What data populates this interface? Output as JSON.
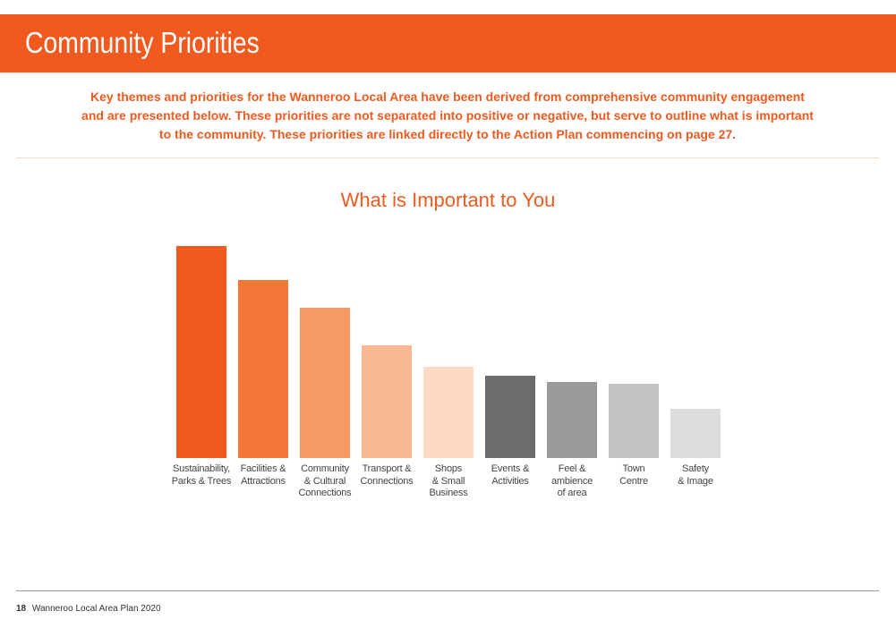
{
  "header": {
    "title": "Community Priorities",
    "color": "#f05a1f"
  },
  "intro": {
    "lines": [
      "Key themes and priorities for the Wanneroo Local Area have been derived from comprehensive community engagement",
      "and are presented below. These priorities are not separated into positive or negative, but serve to outline what is important",
      "to the community. These priorities are linked directly to the Action Plan commencing on page 27."
    ]
  },
  "chart_data": {
    "type": "bar",
    "title": "What is Important to You",
    "xlabel": "",
    "ylabel": "",
    "grid": false,
    "legend": "none",
    "ylim": [
      0,
      100
    ],
    "categories": [
      [
        "Sustainability,",
        "Parks & Trees"
      ],
      [
        "Facilities &",
        "Attractions"
      ],
      [
        "Community",
        "& Cultural",
        "Connections"
      ],
      [
        "Transport &",
        "Connections"
      ],
      [
        "Shops",
        "& Small",
        "Business"
      ],
      [
        "Events &",
        "Activities"
      ],
      [
        "Feel &",
        "ambience",
        "of area"
      ],
      [
        "Town",
        "Centre"
      ],
      [
        "Safety",
        "& Image"
      ]
    ],
    "values": [
      100,
      84,
      71,
      53,
      43,
      39,
      36,
      35,
      23
    ],
    "colors": [
      "#f05a1f",
      "#f37838",
      "#f59a62",
      "#f8b990",
      "#fcdac3",
      "#6d6b6b",
      "#9a9999",
      "#c4c3c3",
      "#dddcdc"
    ]
  },
  "footer": {
    "page_number": "18",
    "doc_title": "Wanneroo Local Area Plan 2020"
  }
}
